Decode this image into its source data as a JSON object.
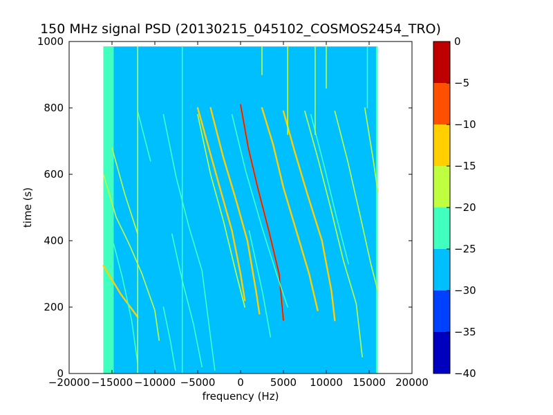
{
  "chart_data": {
    "type": "heatmap",
    "title": "150 MHz signal PSD (20130215_045102_COSMOS2454_TRO)",
    "xlabel": "frequency (Hz)",
    "ylabel": "time (s)",
    "xlim": [
      -20000,
      20000
    ],
    "ylim": [
      0,
      1000
    ],
    "xticks": [
      -20000,
      -15000,
      -10000,
      -5000,
      0,
      5000,
      10000,
      15000,
      20000
    ],
    "xtick_labels": [
      "−20000",
      "−15000",
      "−10000",
      "−5000",
      "0",
      "5000",
      "10000",
      "15000",
      "20000"
    ],
    "yticks": [
      0,
      200,
      400,
      600,
      800,
      1000
    ],
    "ytick_labels": [
      "0",
      "200",
      "400",
      "600",
      "800",
      "1000"
    ],
    "data_extent": {
      "x": [
        -16000,
        16000
      ],
      "y": [
        0,
        985
      ]
    },
    "background_level": -27,
    "edge_band_level": -22,
    "colorbar": {
      "levels": [
        -40,
        -35,
        -30,
        -25,
        -20,
        -15,
        -10,
        -5,
        0
      ],
      "tick_labels": [
        "−40",
        "−35",
        "−30",
        "−25",
        "−20",
        "−15",
        "−10",
        "−5",
        "0"
      ],
      "colors": [
        "#0000bf",
        "#0040ff",
        "#00bfff",
        "#40ffbf",
        "#bfff40",
        "#ffcf00",
        "#ff5000",
        "#bf0000"
      ]
    },
    "traces": [
      {
        "level": -10,
        "color": "#ffcf00",
        "points": [
          [
            -16000,
            325
          ],
          [
            -14000,
            240
          ],
          [
            -12000,
            170
          ]
        ]
      },
      {
        "level": -15,
        "color": "#bfff40",
        "points": [
          [
            -16000,
            600
          ],
          [
            -14500,
            470
          ],
          [
            -13000,
            390
          ],
          [
            -11500,
            300
          ],
          [
            -10000,
            190
          ],
          [
            -9500,
            100
          ]
        ]
      },
      {
        "level": -15,
        "color": "#bfff40",
        "points": [
          [
            -15000,
            680
          ],
          [
            -13500,
            540
          ],
          [
            -12000,
            420
          ]
        ]
      },
      {
        "level": -20,
        "color": "#40ffbf",
        "points": [
          [
            -14800,
            390
          ],
          [
            -13800,
            290
          ],
          [
            -12700,
            160
          ],
          [
            -12000,
            30
          ]
        ]
      },
      {
        "level": -20,
        "color": "#40ffbf",
        "points": [
          [
            -9000,
            780
          ],
          [
            -7500,
            590
          ],
          [
            -6000,
            440
          ],
          [
            -4500,
            310
          ],
          [
            -3500,
            110
          ],
          [
            -3000,
            10
          ]
        ]
      },
      {
        "level": -15,
        "color": "#bfff40",
        "points": [
          [
            -5000,
            780
          ],
          [
            -3500,
            600
          ],
          [
            -2000,
            460
          ],
          [
            -500,
            300
          ],
          [
            500,
            200
          ]
        ]
      },
      {
        "level": -10,
        "color": "#ffcf00",
        "points": [
          [
            -5000,
            800
          ],
          [
            -3500,
            660
          ],
          [
            -2200,
            540
          ],
          [
            -1000,
            430
          ],
          [
            0,
            300
          ],
          [
            500,
            220
          ]
        ]
      },
      {
        "level": -10,
        "color": "#ffcf00",
        "points": [
          [
            -3500,
            800
          ],
          [
            -2000,
            650
          ],
          [
            -500,
            520
          ],
          [
            800,
            400
          ],
          [
            1800,
            250
          ],
          [
            2200,
            180
          ]
        ]
      },
      {
        "level": -5,
        "color": "#ff5000",
        "points": [
          [
            0,
            810
          ],
          [
            900,
            680
          ],
          [
            2000,
            560
          ],
          [
            3300,
            430
          ],
          [
            4500,
            300
          ],
          [
            5000,
            160
          ]
        ]
      },
      {
        "level": -10,
        "color": "#ffcf00",
        "points": [
          [
            2500,
            800
          ],
          [
            3800,
            690
          ],
          [
            5000,
            560
          ],
          [
            6500,
            430
          ],
          [
            8000,
            300
          ],
          [
            9000,
            190
          ]
        ]
      },
      {
        "level": -10,
        "color": "#ffcf00",
        "points": [
          [
            5000,
            790
          ],
          [
            6300,
            670
          ],
          [
            7800,
            540
          ],
          [
            9500,
            400
          ],
          [
            10600,
            250
          ],
          [
            11000,
            160
          ]
        ]
      },
      {
        "level": -15,
        "color": "#bfff40",
        "points": [
          [
            7500,
            790
          ],
          [
            9000,
            650
          ],
          [
            10500,
            500
          ],
          [
            12000,
            340
          ],
          [
            13500,
            210
          ],
          [
            14200,
            50
          ]
        ]
      },
      {
        "level": -15,
        "color": "#bfff40",
        "points": [
          [
            11000,
            790
          ],
          [
            12500,
            640
          ],
          [
            14000,
            470
          ],
          [
            15200,
            330
          ],
          [
            16000,
            250
          ]
        ]
      },
      {
        "level": -15,
        "color": "#bfff40",
        "points": [
          [
            14500,
            800
          ],
          [
            15500,
            640
          ],
          [
            16000,
            550
          ]
        ]
      },
      {
        "level": -20,
        "color": "#40ffbf",
        "points": [
          [
            -9000,
            200
          ],
          [
            -8200,
            100
          ],
          [
            -7600,
            10
          ]
        ]
      },
      {
        "level": -20,
        "color": "#40ffbf",
        "points": [
          [
            -8000,
            420
          ],
          [
            -6800,
            280
          ],
          [
            -5500,
            150
          ],
          [
            -4500,
            20
          ]
        ]
      },
      {
        "level": -20,
        "color": "#40ffbf",
        "points": [
          [
            -1000,
            780
          ],
          [
            600,
            610
          ],
          [
            2500,
            440
          ],
          [
            4200,
            300
          ],
          [
            5500,
            200
          ]
        ]
      },
      {
        "level": -20,
        "color": "#40ffbf",
        "points": [
          [
            8200,
            780
          ],
          [
            9800,
            620
          ],
          [
            11200,
            470
          ],
          [
            12600,
            330
          ]
        ]
      },
      {
        "level": -20,
        "color": "#40ffbf",
        "points": [
          [
            1000,
            430
          ],
          [
            2600,
            240
          ],
          [
            3500,
            110
          ]
        ]
      },
      {
        "level": -20,
        "color": "#40ffbf",
        "points": [
          [
            -12000,
            790
          ],
          [
            -10500,
            640
          ]
        ]
      },
      {
        "level": -15,
        "color": "#bfff40",
        "points": [
          [
            -12000,
            985
          ],
          [
            -12000,
            0
          ]
        ]
      },
      {
        "level": -20,
        "color": "#40ffbf",
        "points": [
          [
            -6800,
            985
          ],
          [
            -6800,
            0
          ]
        ]
      },
      {
        "level": -15,
        "color": "#bfff40",
        "points": [
          [
            5500,
            985
          ],
          [
            5500,
            720
          ]
        ]
      },
      {
        "level": -15,
        "color": "#bfff40",
        "points": [
          [
            8700,
            985
          ],
          [
            8700,
            720
          ]
        ]
      },
      {
        "level": -15,
        "color": "#bfff40",
        "points": [
          [
            2500,
            985
          ],
          [
            2500,
            900
          ]
        ]
      },
      {
        "level": -15,
        "color": "#bfff40",
        "points": [
          [
            10000,
            985
          ],
          [
            10000,
            860
          ]
        ]
      },
      {
        "level": -20,
        "color": "#40ffbf",
        "points": [
          [
            14800,
            985
          ],
          [
            14800,
            800
          ]
        ]
      }
    ]
  }
}
